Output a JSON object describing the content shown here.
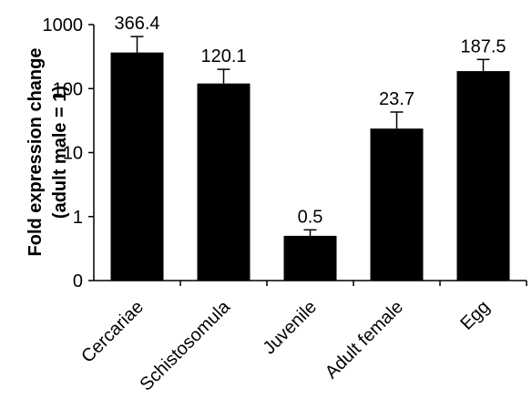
{
  "chart_data": {
    "type": "bar",
    "title": "",
    "xlabel": "",
    "ylabel_line1": "Fold expression change",
    "ylabel_line2": "(adult male = 1)",
    "y_scale": "log",
    "ylim": [
      0.1,
      1000
    ],
    "y_ticks": [
      {
        "value": 0.1,
        "label": "0"
      },
      {
        "value": 1,
        "label": "1"
      },
      {
        "value": 10,
        "label": "10"
      },
      {
        "value": 100,
        "label": "100"
      },
      {
        "value": 1000,
        "label": "1000"
      }
    ],
    "categories": [
      "Cercariae",
      "Schistosomula",
      "Juvenile",
      "Adult female",
      "Egg"
    ],
    "values": [
      366.4,
      120.1,
      0.5,
      23.7,
      187.5
    ],
    "value_labels": [
      "366.4",
      "120.1",
      "0.5",
      "23.7",
      "187.5"
    ],
    "error_upper": [
      650,
      200,
      0.62,
      43,
      285
    ],
    "bar_color": "#000000",
    "grid": false,
    "legend": "none"
  }
}
